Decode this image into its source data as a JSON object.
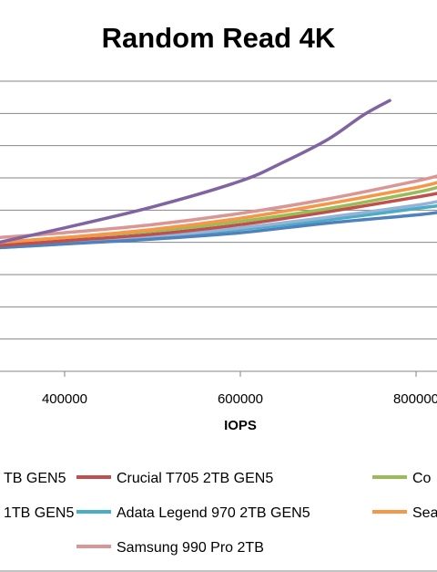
{
  "chart_data": {
    "type": "line",
    "title": "Random Read 4K",
    "xlabel": "IOPS",
    "ylabel": "",
    "x_ticks": [
      "400000",
      "600000",
      "800000"
    ],
    "xlim": [
      300000,
      830000
    ],
    "ylim": [
      0,
      9
    ],
    "grid": true,
    "legend_position": "bottom",
    "series": [
      {
        "name": "TB GEN5",
        "color": "#4f81bd",
        "points": [
          [
            300000,
            3.8
          ],
          [
            400000,
            3.95
          ],
          [
            500000,
            4.1
          ],
          [
            600000,
            4.3
          ],
          [
            700000,
            4.6
          ],
          [
            800000,
            4.85
          ],
          [
            830000,
            4.95
          ]
        ]
      },
      {
        "name": "Crucial T705 2TB GEN5",
        "color": "#c0504d",
        "points": [
          [
            300000,
            3.85
          ],
          [
            400000,
            4.05
          ],
          [
            500000,
            4.25
          ],
          [
            600000,
            4.55
          ],
          [
            700000,
            4.95
          ],
          [
            800000,
            5.4
          ],
          [
            830000,
            5.55
          ]
        ]
      },
      {
        "name": "Co",
        "color": "#9bbb59",
        "points": [
          [
            300000,
            3.95
          ],
          [
            400000,
            4.15
          ],
          [
            500000,
            4.35
          ],
          [
            600000,
            4.65
          ],
          [
            700000,
            5.05
          ],
          [
            800000,
            5.55
          ],
          [
            830000,
            5.75
          ]
        ]
      },
      {
        "name": "1TB GEN5",
        "color": "#8064a2",
        "points": [
          [
            300000,
            3.85
          ],
          [
            400000,
            4.45
          ],
          [
            500000,
            5.1
          ],
          [
            600000,
            5.9
          ],
          [
            650000,
            6.5
          ],
          [
            700000,
            7.2
          ],
          [
            740000,
            7.95
          ],
          [
            770000,
            8.4
          ]
        ]
      },
      {
        "name": "Adata Legend 970 2TB GEN5",
        "color": "#4bacc6",
        "points": [
          [
            300000,
            3.8
          ],
          [
            400000,
            3.95
          ],
          [
            500000,
            4.15
          ],
          [
            600000,
            4.4
          ],
          [
            700000,
            4.7
          ],
          [
            800000,
            5.05
          ],
          [
            830000,
            5.15
          ]
        ]
      },
      {
        "name": "Sea",
        "color": "#f79646",
        "points": [
          [
            300000,
            3.95
          ],
          [
            400000,
            4.15
          ],
          [
            500000,
            4.4
          ],
          [
            600000,
            4.75
          ],
          [
            700000,
            5.2
          ],
          [
            800000,
            5.7
          ],
          [
            830000,
            5.9
          ]
        ]
      },
      {
        "name": "Samsung 990 Pro 2TB",
        "color": "#d99694",
        "points": [
          [
            300000,
            4.1
          ],
          [
            400000,
            4.3
          ],
          [
            500000,
            4.55
          ],
          [
            600000,
            4.9
          ],
          [
            700000,
            5.35
          ],
          [
            800000,
            5.9
          ],
          [
            830000,
            6.1
          ]
        ]
      },
      {
        "name": "",
        "color": "#95b3d7",
        "points": [
          [
            300000,
            3.8
          ],
          [
            400000,
            3.97
          ],
          [
            500000,
            4.17
          ],
          [
            600000,
            4.45
          ],
          [
            700000,
            4.78
          ],
          [
            800000,
            5.15
          ],
          [
            830000,
            5.3
          ]
        ]
      }
    ]
  },
  "legend_rows": [
    [
      0,
      1,
      2
    ],
    [
      3,
      4,
      5
    ],
    [
      -1,
      6,
      -1
    ]
  ]
}
